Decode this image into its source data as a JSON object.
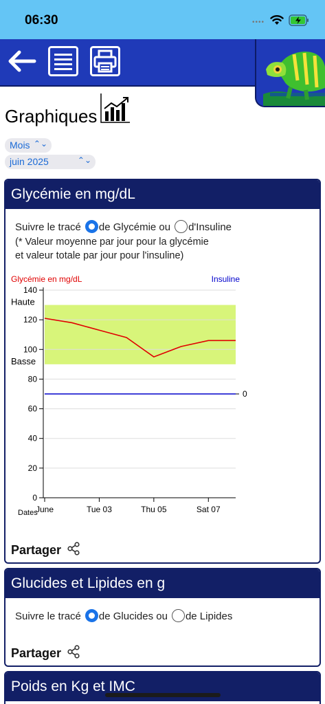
{
  "status_bar": {
    "time": "06:30"
  },
  "toolbar": {
    "icons": [
      "back-arrow-icon",
      "list-icon",
      "printer-icon",
      "chameleon-mascot"
    ]
  },
  "page": {
    "title": "Graphiques"
  },
  "pickers": {
    "period": "Mois",
    "date": "juin 2025"
  },
  "card1": {
    "header": "Glycémie en mg/dL",
    "trace_prefix": "Suivre le tracé",
    "option1": "de Glycémie ou",
    "option2": "d'Insuline",
    "note_line1": "(* Valeur moyenne par jour pour la glycémie",
    "note_line2": "et valeur totale par jour pour l'insuline)",
    "share": "Partager"
  },
  "card2": {
    "header": "Glucides et Lipides en g",
    "trace_prefix": "Suivre le tracé",
    "option1": "de Glucides ou",
    "option2": "de Lipides",
    "share": "Partager"
  },
  "card3": {
    "header": "Poids en Kg et IMC"
  },
  "colors": {
    "toolbar": "#1f3ab8",
    "header": "#121f66",
    "statusbar": "#64c5f5",
    "glycemia": "#e00000",
    "insulin": "#0000cc",
    "target_band": "#d8f57a"
  },
  "chart_data": {
    "type": "line",
    "left_axis_label": "Glycémie en mg/dL",
    "right_axis_label": "Insuline",
    "xlabel": "Dates",
    "x_tick_labels": [
      "June",
      "Tue 03",
      "Thu 05",
      "Sat 07"
    ],
    "x_tick_days": [
      1,
      3,
      5,
      7
    ],
    "x_range": [
      1,
      8
    ],
    "ylim": [
      0,
      140
    ],
    "y_ticks": [
      0,
      20,
      40,
      60,
      80,
      100,
      120,
      140
    ],
    "band": {
      "low": 90,
      "high": 130,
      "low_label": "Basse",
      "high_label": "Haute"
    },
    "right_value_label": "0",
    "series": [
      {
        "name": "Glycémie en mg/dL",
        "color": "#e00000",
        "x": [
          1,
          2,
          3,
          4,
          5,
          6,
          7,
          8
        ],
        "y": [
          121,
          118,
          113,
          108,
          95,
          102,
          106,
          106
        ]
      },
      {
        "name": "Insuline",
        "color": "#0000cc",
        "x": [
          1,
          8
        ],
        "y": [
          70,
          70
        ]
      }
    ],
    "grid": true
  }
}
